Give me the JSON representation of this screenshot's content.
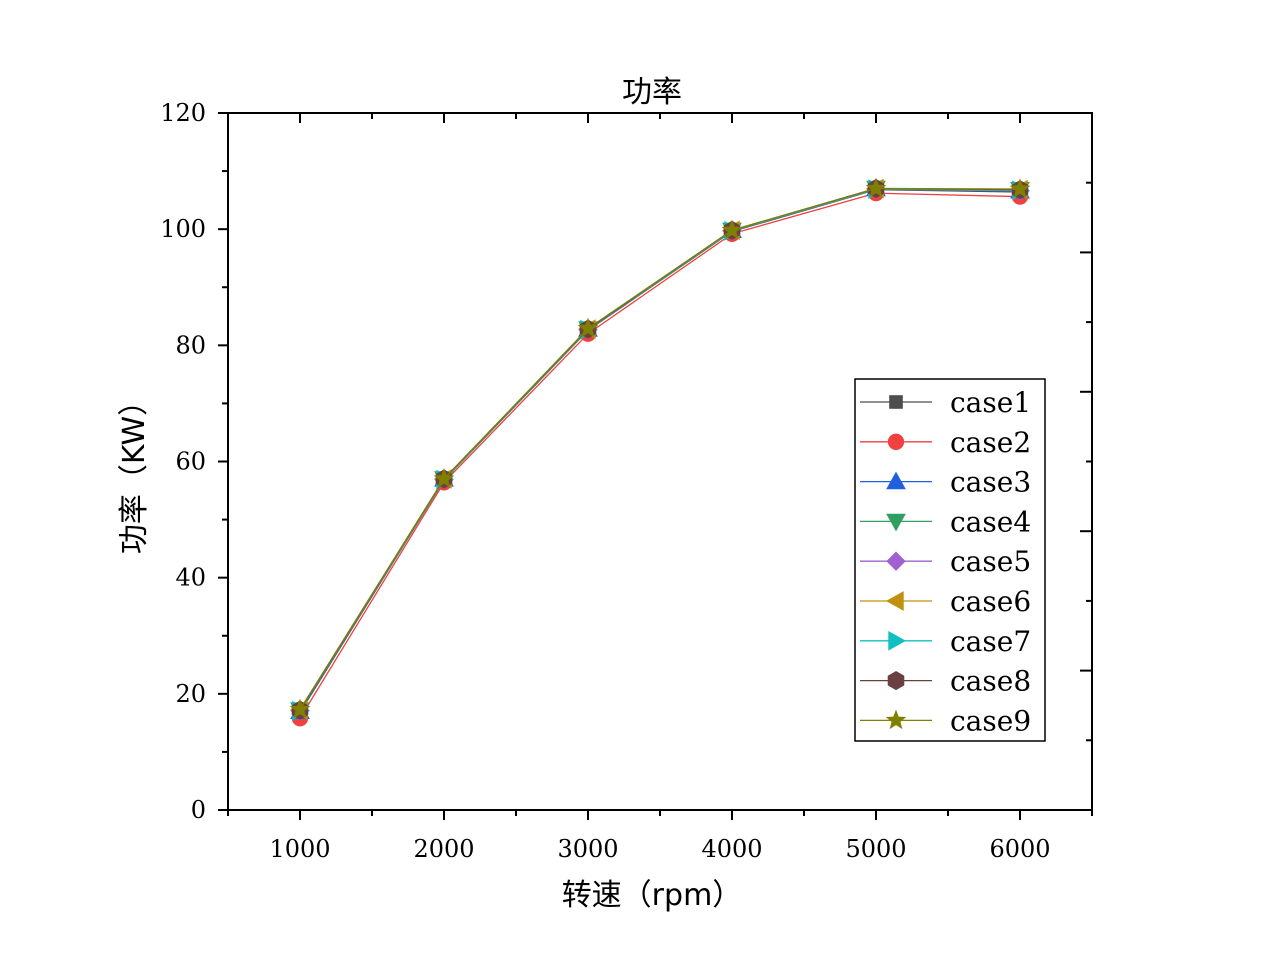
{
  "chart_data": {
    "type": "line",
    "title": "功率",
    "xlabel": "转速（rpm）",
    "ylabel": "功率（KW）",
    "xlim": [
      500,
      6500
    ],
    "ylim": [
      0,
      120
    ],
    "x_ticks": [
      1000,
      2000,
      3000,
      4000,
      5000,
      6000
    ],
    "y_ticks": [
      0,
      20,
      40,
      60,
      80,
      100,
      120
    ],
    "grid": false,
    "legend_position": "right",
    "x": [
      1000,
      2000,
      3000,
      4000,
      5000,
      6000
    ],
    "series": [
      {
        "name": "case1",
        "color": "#4d4d4d",
        "marker": "square",
        "values": [
          16.8,
          56.8,
          82.6,
          99.6,
          106.8,
          106.4
        ]
      },
      {
        "name": "case2",
        "color": "#f04040",
        "marker": "circle",
        "values": [
          15.8,
          56.4,
          82.0,
          99.2,
          106.2,
          105.6
        ]
      },
      {
        "name": "case3",
        "color": "#2060e0",
        "marker": "triangle-up",
        "values": [
          17.0,
          57.0,
          82.8,
          99.8,
          107.0,
          106.6
        ]
      },
      {
        "name": "case4",
        "color": "#30a060",
        "marker": "triangle-down",
        "values": [
          17.2,
          57.0,
          82.8,
          99.8,
          107.0,
          106.8
        ]
      },
      {
        "name": "case5",
        "color": "#a060d0",
        "marker": "diamond",
        "values": [
          17.1,
          56.9,
          82.7,
          99.7,
          106.9,
          106.6
        ]
      },
      {
        "name": "case6",
        "color": "#c09010",
        "marker": "triangle-left",
        "values": [
          17.2,
          57.0,
          82.8,
          99.8,
          107.0,
          106.8
        ]
      },
      {
        "name": "case7",
        "color": "#10c0c0",
        "marker": "triangle-right",
        "values": [
          17.1,
          56.9,
          82.7,
          99.7,
          106.9,
          106.7
        ]
      },
      {
        "name": "case8",
        "color": "#6a4040",
        "marker": "hexagon",
        "values": [
          17.2,
          57.0,
          82.8,
          99.8,
          107.0,
          106.8
        ]
      },
      {
        "name": "case9",
        "color": "#808000",
        "marker": "star",
        "values": [
          17.3,
          57.0,
          82.9,
          99.8,
          107.0,
          106.9
        ]
      }
    ]
  }
}
